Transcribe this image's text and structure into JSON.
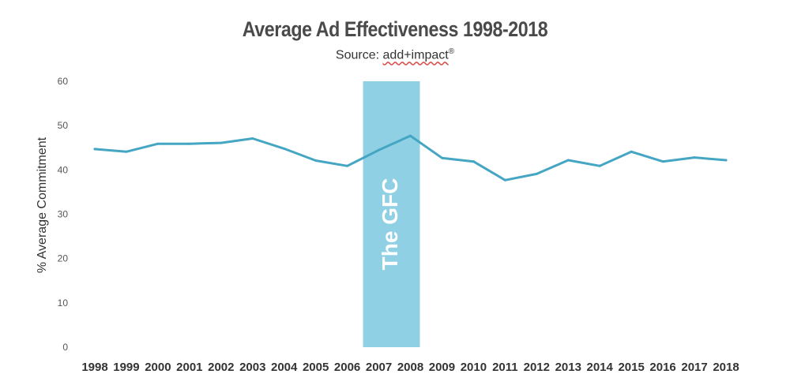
{
  "title": "Average Ad Effectiveness 1998-2018",
  "subtitle": {
    "prefix": "Source: ",
    "brand": "add+impact",
    "mark": "®"
  },
  "chart_data": {
    "type": "line",
    "title": "Average Ad Effectiveness 1998-2018",
    "subtitle": "Source: add+impact®",
    "xlabel": "",
    "ylabel": "% Average Commitment",
    "ylim": [
      0,
      60
    ],
    "yticks": [
      0,
      10,
      20,
      30,
      40,
      50,
      60
    ],
    "grid": false,
    "categories": [
      "1998",
      "1999",
      "2000",
      "2001",
      "2002",
      "2003",
      "2004",
      "2005",
      "2006",
      "2007",
      "2008",
      "2009",
      "2010",
      "2011",
      "2012",
      "2013",
      "2014",
      "2015",
      "2016",
      "2017",
      "2018"
    ],
    "series": [
      {
        "values": [
          44.7,
          44.1,
          45.9,
          45.9,
          46.1,
          47.1,
          44.8,
          42.1,
          40.9,
          44.5,
          47.7,
          42.7,
          41.9,
          37.7,
          39.1,
          42.2,
          40.9,
          44.1,
          41.9,
          42.8,
          42.2
        ],
        "color": "#45a6c3"
      }
    ],
    "annotation": {
      "label": "The GFC",
      "from": "2006",
      "to": "2008",
      "color": "#8fd0e4"
    }
  }
}
